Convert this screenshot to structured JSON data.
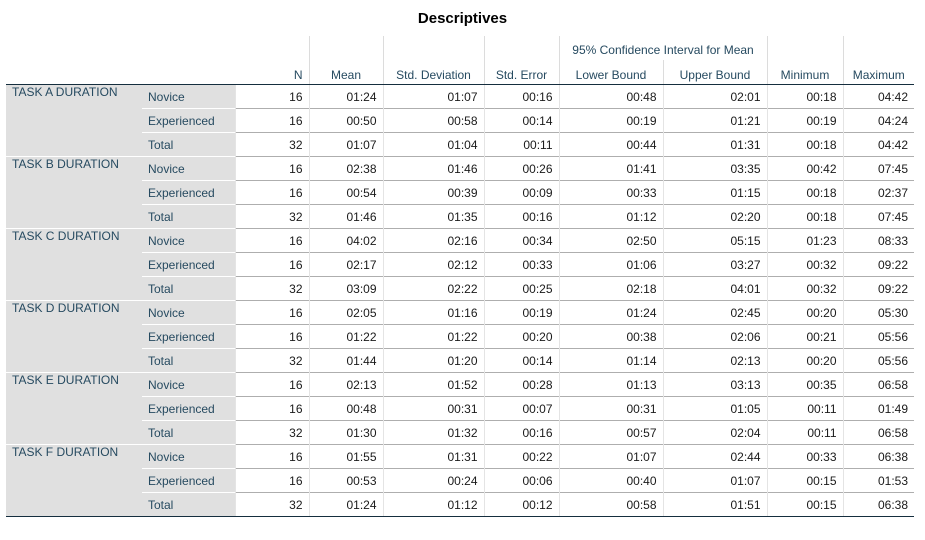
{
  "title": "Descriptives",
  "headers": {
    "ci_group": "95% Confidence Interval for Mean",
    "n": "N",
    "mean": "Mean",
    "std_dev": "Std. Deviation",
    "std_err": "Std. Error",
    "lower": "Lower Bound",
    "upper": "Upper Bound",
    "min": "Minimum",
    "max": "Maximum"
  },
  "tasks": [
    {
      "label": "TASK A DURATION",
      "rows": [
        {
          "group": "Novice",
          "n": "16",
          "mean": "01:24",
          "sd": "01:07",
          "se": "00:16",
          "lb": "00:48",
          "ub": "02:01",
          "min": "00:18",
          "max": "04:42"
        },
        {
          "group": "Experienced",
          "n": "16",
          "mean": "00:50",
          "sd": "00:58",
          "se": "00:14",
          "lb": "00:19",
          "ub": "01:21",
          "min": "00:19",
          "max": "04:24"
        },
        {
          "group": "Total",
          "n": "32",
          "mean": "01:07",
          "sd": "01:04",
          "se": "00:11",
          "lb": "00:44",
          "ub": "01:31",
          "min": "00:18",
          "max": "04:42"
        }
      ]
    },
    {
      "label": "TASK B DURATION",
      "rows": [
        {
          "group": "Novice",
          "n": "16",
          "mean": "02:38",
          "sd": "01:46",
          "se": "00:26",
          "lb": "01:41",
          "ub": "03:35",
          "min": "00:42",
          "max": "07:45"
        },
        {
          "group": "Experienced",
          "n": "16",
          "mean": "00:54",
          "sd": "00:39",
          "se": "00:09",
          "lb": "00:33",
          "ub": "01:15",
          "min": "00:18",
          "max": "02:37"
        },
        {
          "group": "Total",
          "n": "32",
          "mean": "01:46",
          "sd": "01:35",
          "se": "00:16",
          "lb": "01:12",
          "ub": "02:20",
          "min": "00:18",
          "max": "07:45"
        }
      ]
    },
    {
      "label": "TASK C DURATION",
      "rows": [
        {
          "group": "Novice",
          "n": "16",
          "mean": "04:02",
          "sd": "02:16",
          "se": "00:34",
          "lb": "02:50",
          "ub": "05:15",
          "min": "01:23",
          "max": "08:33"
        },
        {
          "group": "Experienced",
          "n": "16",
          "mean": "02:17",
          "sd": "02:12",
          "se": "00:33",
          "lb": "01:06",
          "ub": "03:27",
          "min": "00:32",
          "max": "09:22"
        },
        {
          "group": "Total",
          "n": "32",
          "mean": "03:09",
          "sd": "02:22",
          "se": "00:25",
          "lb": "02:18",
          "ub": "04:01",
          "min": "00:32",
          "max": "09:22"
        }
      ]
    },
    {
      "label": "TASK D DURATION",
      "rows": [
        {
          "group": "Novice",
          "n": "16",
          "mean": "02:05",
          "sd": "01:16",
          "se": "00:19",
          "lb": "01:24",
          "ub": "02:45",
          "min": "00:20",
          "max": "05:30"
        },
        {
          "group": "Experienced",
          "n": "16",
          "mean": "01:22",
          "sd": "01:22",
          "se": "00:20",
          "lb": "00:38",
          "ub": "02:06",
          "min": "00:21",
          "max": "05:56"
        },
        {
          "group": "Total",
          "n": "32",
          "mean": "01:44",
          "sd": "01:20",
          "se": "00:14",
          "lb": "01:14",
          "ub": "02:13",
          "min": "00:20",
          "max": "05:56"
        }
      ]
    },
    {
      "label": "TASK E DURATION",
      "rows": [
        {
          "group": "Novice",
          "n": "16",
          "mean": "02:13",
          "sd": "01:52",
          "se": "00:28",
          "lb": "01:13",
          "ub": "03:13",
          "min": "00:35",
          "max": "06:58"
        },
        {
          "group": "Experienced",
          "n": "16",
          "mean": "00:48",
          "sd": "00:31",
          "se": "00:07",
          "lb": "00:31",
          "ub": "01:05",
          "min": "00:11",
          "max": "01:49"
        },
        {
          "group": "Total",
          "n": "32",
          "mean": "01:30",
          "sd": "01:32",
          "se": "00:16",
          "lb": "00:57",
          "ub": "02:04",
          "min": "00:11",
          "max": "06:58"
        }
      ]
    },
    {
      "label": "TASK F DURATION",
      "rows": [
        {
          "group": "Novice",
          "n": "16",
          "mean": "01:55",
          "sd": "01:31",
          "se": "00:22",
          "lb": "01:07",
          "ub": "02:44",
          "min": "00:33",
          "max": "06:38"
        },
        {
          "group": "Experienced",
          "n": "16",
          "mean": "00:53",
          "sd": "00:24",
          "se": "00:06",
          "lb": "00:40",
          "ub": "01:07",
          "min": "00:15",
          "max": "01:53"
        },
        {
          "group": "Total",
          "n": "32",
          "mean": "01:24",
          "sd": "01:12",
          "se": "00:12",
          "lb": "00:58",
          "ub": "01:51",
          "min": "00:15",
          "max": "06:38"
        }
      ]
    }
  ]
}
